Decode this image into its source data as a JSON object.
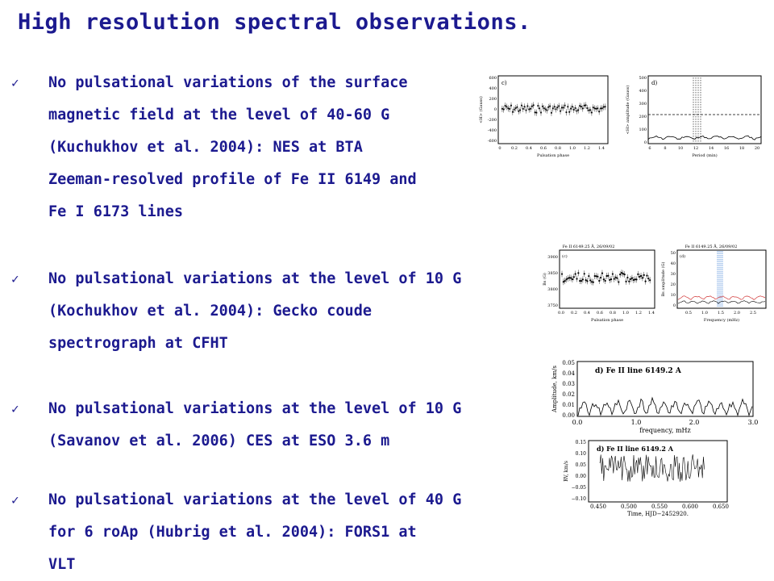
{
  "slide": {
    "title": "High resolution spectral observations.",
    "bullets": [
      {
        "check_icon": "✓",
        "lines": [
          "No pulsational variations of the surface",
          "magnetic field at the level of 40-60 G",
          "(Kuchukhov et al. 2004): NES at BTA",
          "Zeeman-resolved profile of Fe II 6149 and",
          "Fe I 6173 lines"
        ]
      },
      {
        "check_icon": "✓",
        "lines": [
          "No pulsational variations at the level of 10 G",
          "(Kochukhov et al. 2004): Gecko coude",
          "spectrograph at CFHT"
        ]
      },
      {
        "check_icon": "✓",
        "lines": [
          "No pulsational variations at the level of 10 G",
          "(Savanov et al. 2006) CES at ESO 3.6 m"
        ]
      },
      {
        "check_icon": "✓",
        "lines": [
          "No pulsational variations at the level of 40 G",
          "for 6 roAp (Hubrig et al. 2004): FORS1 at",
          "VLT"
        ]
      }
    ]
  },
  "figures": {
    "fig1": {
      "left": {
        "label": "c)",
        "ylabel": "<H> (Gauss)",
        "xlabel": "Pulsation phase",
        "yticks": [
          "600",
          "400",
          "200",
          "0",
          "-200",
          "-400",
          "-600"
        ],
        "xticks": [
          "0",
          "0.2",
          "0.4",
          "0.6",
          "0.8",
          "1.0",
          "1.2",
          "1.4"
        ]
      },
      "right": {
        "label": "d)",
        "ylabel": "<H> amplitude (Gauss)",
        "xlabel": "Period (min)",
        "yticks": [
          "500",
          "400",
          "300",
          "200",
          "100",
          "0"
        ],
        "xticks": [
          "6",
          "8",
          "10",
          "12",
          "14",
          "16",
          "18",
          "20"
        ]
      }
    },
    "fig2": {
      "left": {
        "label": "(c)",
        "header": "Fe II 6149.25 Å, 26/09/02",
        "ylabel": "Bs (G)",
        "xlabel": "Pulsation phase",
        "yticks": [
          "3900",
          "3850",
          "3800",
          "3750"
        ],
        "xticks": [
          "0.0",
          "0.2",
          "0.4",
          "0.6",
          "0.8",
          "1.0",
          "1.2",
          "1.4"
        ]
      },
      "right": {
        "label": "(d)",
        "header": "Fe II 6149.25 Å, 26/09/02",
        "ylabel": "Bs amplitude (G)",
        "xlabel": "Frequency (mHz)",
        "yticks": [
          "50",
          "40",
          "30",
          "20",
          "10",
          "0"
        ],
        "xticks": [
          "0.5",
          "1.0",
          "1.5",
          "2.0",
          "2.5"
        ]
      }
    },
    "fig3": {
      "label": "d) Fe II line 6149.2 A",
      "ylabel": "Amplitude, km/s",
      "xlabel": "frequency, mHz",
      "yticks": [
        "0.05",
        "0.04",
        "0.03",
        "0.02",
        "0.01",
        "0.00"
      ],
      "xticks": [
        "0.0",
        "1.0",
        "2.0",
        "3.0"
      ]
    },
    "fig4": {
      "label": "d) Fe II line 6149.2 A",
      "ylabel": "RV, km/s",
      "xlabel": "Time, HJD−2452920.",
      "yticks": [
        "0.15",
        "0.10",
        "0.05",
        "0.00",
        "−0.05",
        "−0.10"
      ],
      "xticks": [
        "0.450",
        "0.500",
        "0.550",
        "0.600",
        "0.650"
      ]
    }
  },
  "colors": {
    "text": "#1c1a8f",
    "fig2_dashed_lines": "#3a7fd5",
    "fig2_red_curve": "#d23a3a"
  }
}
